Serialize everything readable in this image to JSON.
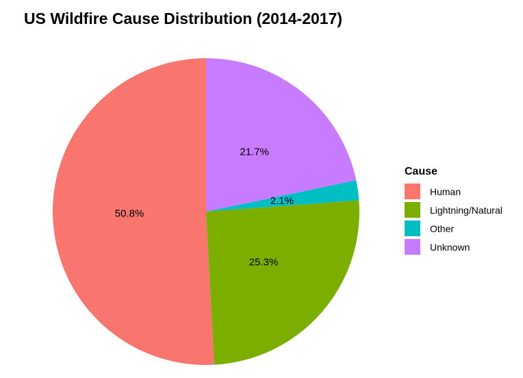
{
  "chart_data": {
    "type": "pie",
    "title": "US Wildfire Cause Distribution (2014-2017)",
    "legend_title": "Cause",
    "legend_position": "right",
    "categories": [
      "Human",
      "Lightning/Natural",
      "Other",
      "Unknown"
    ],
    "values": [
      50.8,
      25.3,
      2.1,
      21.7
    ],
    "labels": [
      "50.8%",
      "25.3%",
      "2.1%",
      "21.7%"
    ],
    "colors": [
      "#F8766D",
      "#7CAE00",
      "#00BFC4",
      "#C77CFF"
    ],
    "direction": "counterclockwise",
    "start": "top"
  }
}
